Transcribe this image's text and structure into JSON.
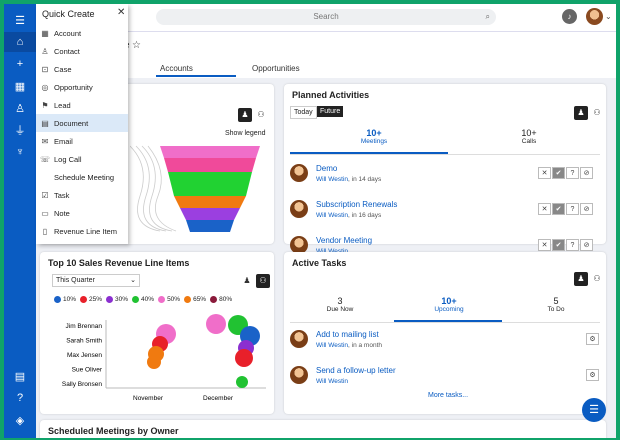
{
  "search": {
    "placeholder": "Search"
  },
  "rail": {
    "icons": [
      "menu-icon",
      "home-icon",
      "plus-icon",
      "calendar-icon",
      "contacts-icon",
      "filter-icon",
      "trophy-icon",
      "document-icon",
      "help-icon",
      "layers-icon"
    ]
  },
  "quick_create": {
    "title": "Quick Create",
    "items": [
      {
        "label": "Account",
        "glyph": "▦"
      },
      {
        "label": "Contact",
        "glyph": "♙"
      },
      {
        "label": "Case",
        "glyph": "⊡"
      },
      {
        "label": "Opportunity",
        "glyph": "◎"
      },
      {
        "label": "Lead",
        "glyph": "⚑"
      },
      {
        "label": "Document",
        "glyph": "▤"
      },
      {
        "label": "Email",
        "glyph": "✉"
      },
      {
        "label": "Log Call",
        "glyph": "☏"
      },
      {
        "label": "Schedule Meeting",
        "glyph": ""
      },
      {
        "label": "Task",
        "glyph": "☑"
      },
      {
        "label": "Note",
        "glyph": "▭"
      },
      {
        "label": "Revenue Line Item",
        "glyph": "▯"
      }
    ],
    "selected_index": 5
  },
  "subhead": {
    "tabs": [
      "Accounts",
      "Opportunities"
    ]
  },
  "pipeline": {
    "show_legend": "Show legend"
  },
  "planned": {
    "title": "Planned Activities",
    "toggles": [
      "Today",
      "Future"
    ],
    "tabs": [
      {
        "count": "10+",
        "label": "Meetings"
      },
      {
        "count": "10+",
        "label": "Calls"
      }
    ],
    "rows": [
      {
        "title": "Demo",
        "owner": "Will Westin",
        "when": ", in 14 days"
      },
      {
        "title": "Subscription Renewals",
        "owner": "Will Westin",
        "when": ", in 16 days"
      },
      {
        "title": "Vendor Meeting",
        "owner": "Will Westin",
        "when": ""
      }
    ]
  },
  "revenue": {
    "title": "Top 10 Sales Revenue Line Items",
    "filter": "This Quarter",
    "chart_data": {
      "type": "scatter",
      "legend": [
        {
          "label": "10%",
          "color": "#1a62c8"
        },
        {
          "label": "25%",
          "color": "#e8202a"
        },
        {
          "label": "30%",
          "color": "#8b2fd0"
        },
        {
          "label": "40%",
          "color": "#21c232"
        },
        {
          "label": "50%",
          "color": "#f06ec9"
        },
        {
          "label": "65%",
          "color": "#f07a10"
        },
        {
          "label": "80%",
          "color": "#8a1a3a"
        }
      ],
      "y_categories": [
        "Jim Brennan",
        "Sarah Smith",
        "Max Jensen",
        "Sue Oliver",
        "Sally Bronsen"
      ],
      "x_ticks": [
        "November",
        "December"
      ]
    }
  },
  "tasks": {
    "title": "Active Tasks",
    "tabs": [
      {
        "count": "3",
        "label": "Due Now"
      },
      {
        "count": "10+",
        "label": "Upcoming"
      },
      {
        "count": "5",
        "label": "To Do"
      }
    ],
    "rows": [
      {
        "title": "Add to mailing list",
        "owner": "Will Westin",
        "when": ", in a month"
      },
      {
        "title": "Send a follow-up letter",
        "owner": "Will Westin",
        "when": ""
      }
    ],
    "more": "More tasks..."
  },
  "bottom": {
    "title": "Scheduled Meetings by Owner"
  }
}
